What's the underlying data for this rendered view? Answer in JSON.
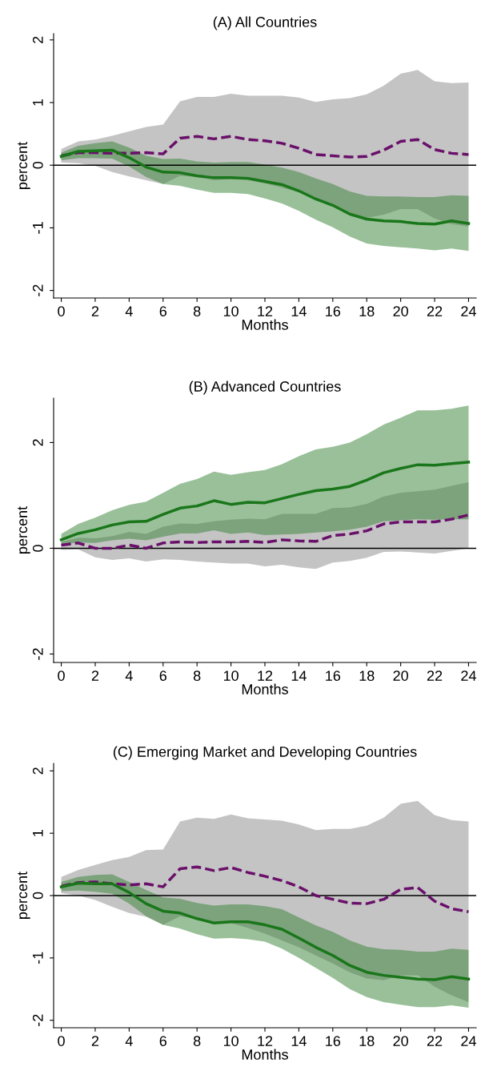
{
  "chart_data": [
    {
      "type": "line",
      "title": "(A) All Countries",
      "xlabel": "Months",
      "ylabel": "percent",
      "x": [
        0,
        1,
        2,
        3,
        4,
        5,
        6,
        7,
        8,
        9,
        10,
        11,
        12,
        13,
        14,
        15,
        16,
        17,
        18,
        19,
        20,
        21,
        22,
        23,
        24
      ],
      "xlim": [
        -0.45,
        24.45
      ],
      "xticks": [
        0,
        2,
        4,
        6,
        8,
        10,
        12,
        14,
        16,
        18,
        20,
        22,
        24
      ],
      "ylim": [
        -2.12,
        2.1
      ],
      "yticks": [
        -2,
        -1,
        0,
        1,
        2
      ],
      "ref_lines": [
        {
          "axis": "y",
          "value": 0,
          "color": "#000000"
        }
      ],
      "series": [
        {
          "color": "#6a0f6a",
          "line_style": "dashed",
          "values": [
            0.15,
            0.2,
            0.2,
            0.19,
            0.19,
            0.2,
            0.18,
            0.43,
            0.46,
            0.42,
            0.46,
            0.41,
            0.39,
            0.35,
            0.27,
            0.17,
            0.15,
            0.13,
            0.14,
            0.24,
            0.38,
            0.41,
            0.25,
            0.19,
            0.17
          ],
          "upper": [
            0.26,
            0.38,
            0.41,
            0.47,
            0.54,
            0.61,
            0.65,
            1.02,
            1.09,
            1.09,
            1.14,
            1.11,
            1.11,
            1.11,
            1.08,
            1.01,
            1.05,
            1.07,
            1.13,
            1.27,
            1.46,
            1.52,
            1.34,
            1.31,
            1.32
          ],
          "lower": [
            0.04,
            0.03,
            -0.01,
            -0.11,
            -0.18,
            -0.24,
            -0.3,
            -0.17,
            -0.19,
            -0.24,
            -0.22,
            -0.24,
            -0.29,
            -0.36,
            -0.43,
            -0.54,
            -0.63,
            -0.79,
            -0.84,
            -0.79,
            -0.7,
            -0.7,
            -0.85,
            -0.94,
            -0.98
          ]
        },
        {
          "color": "#1a761a",
          "line_style": "solid",
          "values": [
            0.14,
            0.22,
            0.23,
            0.24,
            0.12,
            -0.03,
            -0.11,
            -0.12,
            -0.17,
            -0.2,
            -0.2,
            -0.21,
            -0.26,
            -0.31,
            -0.41,
            -0.54,
            -0.64,
            -0.78,
            -0.86,
            -0.89,
            -0.9,
            -0.93,
            -0.94,
            -0.89,
            -0.93
          ],
          "upper": [
            0.2,
            0.31,
            0.35,
            0.38,
            0.28,
            0.15,
            0.1,
            0.105,
            0.06,
            0.04,
            0.05,
            0.05,
            0.01,
            -0.04,
            -0.11,
            -0.21,
            -0.3,
            -0.42,
            -0.49,
            -0.5,
            -0.5,
            -0.51,
            -0.51,
            -0.48,
            -0.49
          ],
          "lower": [
            0.08,
            0.11,
            0.11,
            0.105,
            -0.02,
            -0.19,
            -0.3,
            -0.33,
            -0.39,
            -0.44,
            -0.44,
            -0.46,
            -0.53,
            -0.61,
            -0.73,
            -0.87,
            -0.99,
            -1.14,
            -1.25,
            -1.29,
            -1.31,
            -1.33,
            -1.36,
            -1.33,
            -1.37
          ]
        }
      ]
    },
    {
      "type": "line",
      "title": "(B) Advanced Countries",
      "xlabel": "Months",
      "ylabel": "percent",
      "x": [
        0,
        1,
        2,
        3,
        4,
        5,
        6,
        7,
        8,
        9,
        10,
        11,
        12,
        13,
        14,
        15,
        16,
        17,
        18,
        19,
        20,
        21,
        22,
        23,
        24
      ],
      "xlim": [
        -0.45,
        24.45
      ],
      "xticks": [
        0,
        2,
        4,
        6,
        8,
        10,
        12,
        14,
        16,
        18,
        20,
        22,
        24
      ],
      "ylim": [
        -2.16,
        2.84
      ],
      "yticks": [
        -2,
        0,
        2
      ],
      "ref_lines": [
        {
          "axis": "y",
          "value": 0,
          "color": "#000000"
        }
      ],
      "series": [
        {
          "color": "#6a0f6a",
          "line_style": "dashed",
          "values": [
            0.06,
            0.1,
            0.0,
            0.0,
            0.06,
            0.0,
            0.1,
            0.12,
            0.11,
            0.12,
            0.12,
            0.13,
            0.11,
            0.16,
            0.14,
            0.13,
            0.24,
            0.27,
            0.33,
            0.46,
            0.5,
            0.5,
            0.5,
            0.55,
            0.63
          ],
          "upper": [
            0.12,
            0.2,
            0.19,
            0.23,
            0.31,
            0.27,
            0.41,
            0.47,
            0.46,
            0.51,
            0.54,
            0.56,
            0.55,
            0.65,
            0.65,
            0.65,
            0.76,
            0.77,
            0.84,
            0.98,
            1.05,
            1.08,
            1.11,
            1.18,
            1.25
          ],
          "lower": [
            -0.03,
            -0.02,
            -0.17,
            -0.22,
            -0.19,
            -0.25,
            -0.21,
            -0.22,
            -0.25,
            -0.27,
            -0.29,
            -0.29,
            -0.34,
            -0.31,
            -0.36,
            -0.39,
            -0.27,
            -0.24,
            -0.18,
            -0.07,
            -0.06,
            -0.08,
            -0.1,
            -0.05,
            0.0
          ]
        },
        {
          "color": "#1a761a",
          "line_style": "solid",
          "values": [
            0.16,
            0.28,
            0.35,
            0.44,
            0.5,
            0.51,
            0.64,
            0.76,
            0.8,
            0.9,
            0.83,
            0.87,
            0.86,
            0.94,
            1.02,
            1.09,
            1.12,
            1.17,
            1.29,
            1.43,
            1.51,
            1.58,
            1.57,
            1.6,
            1.63
          ],
          "upper": [
            0.27,
            0.46,
            0.58,
            0.72,
            0.82,
            0.88,
            1.05,
            1.22,
            1.31,
            1.45,
            1.39,
            1.44,
            1.48,
            1.59,
            1.74,
            1.87,
            1.92,
            2.0,
            2.16,
            2.34,
            2.47,
            2.61,
            2.61,
            2.64,
            2.7
          ],
          "lower": [
            0.07,
            0.11,
            0.1,
            0.15,
            0.18,
            0.15,
            0.22,
            0.28,
            0.28,
            0.34,
            0.27,
            0.3,
            0.25,
            0.26,
            0.27,
            0.3,
            0.32,
            0.35,
            0.41,
            0.51,
            0.53,
            0.55,
            0.54,
            0.55,
            0.55
          ]
        }
      ]
    },
    {
      "type": "line",
      "title": "(C) Emerging Market and Developing Countries",
      "xlabel": "Months",
      "ylabel": "percent",
      "x": [
        0,
        1,
        2,
        3,
        4,
        5,
        6,
        7,
        8,
        9,
        10,
        11,
        12,
        13,
        14,
        15,
        16,
        17,
        18,
        19,
        20,
        21,
        22,
        23,
        24
      ],
      "xlim": [
        -0.45,
        24.45
      ],
      "xticks": [
        0,
        2,
        4,
        6,
        8,
        10,
        12,
        14,
        16,
        18,
        20,
        22,
        24
      ],
      "ylim": [
        -2.12,
        2.12
      ],
      "yticks": [
        -2,
        -1,
        0,
        1,
        2
      ],
      "ref_lines": [
        {
          "axis": "y",
          "value": 0,
          "color": "#000000"
        }
      ],
      "series": [
        {
          "color": "#6a0f6a",
          "line_style": "dashed",
          "values": [
            0.15,
            0.21,
            0.22,
            0.19,
            0.17,
            0.19,
            0.14,
            0.43,
            0.46,
            0.4,
            0.45,
            0.37,
            0.31,
            0.24,
            0.14,
            0.0,
            -0.06,
            -0.12,
            -0.13,
            -0.06,
            0.1,
            0.13,
            -0.09,
            -0.21,
            -0.26
          ],
          "upper": [
            0.3,
            0.41,
            0.49,
            0.57,
            0.62,
            0.73,
            0.74,
            1.19,
            1.25,
            1.23,
            1.3,
            1.24,
            1.22,
            1.2,
            1.14,
            1.05,
            1.07,
            1.07,
            1.12,
            1.25,
            1.47,
            1.52,
            1.29,
            1.21,
            1.19
          ],
          "lower": [
            0.04,
            0.0,
            -0.07,
            -0.18,
            -0.28,
            -0.34,
            -0.47,
            -0.33,
            -0.38,
            -0.43,
            -0.44,
            -0.52,
            -0.61,
            -0.72,
            -0.83,
            -0.96,
            -1.09,
            -1.23,
            -1.33,
            -1.36,
            -1.28,
            -1.28,
            -1.46,
            -1.6,
            -1.71
          ]
        },
        {
          "color": "#1a761a",
          "line_style": "solid",
          "values": [
            0.14,
            0.2,
            0.19,
            0.19,
            0.05,
            -0.13,
            -0.25,
            -0.28,
            -0.37,
            -0.44,
            -0.42,
            -0.42,
            -0.47,
            -0.54,
            -0.68,
            -0.83,
            -0.96,
            -1.12,
            -1.23,
            -1.28,
            -1.31,
            -1.34,
            -1.35,
            -1.3,
            -1.34
          ],
          "upper": [
            0.22,
            0.3,
            0.33,
            0.34,
            0.22,
            0.09,
            -0.03,
            -0.05,
            -0.12,
            -0.16,
            -0.14,
            -0.14,
            -0.17,
            -0.22,
            -0.35,
            -0.48,
            -0.58,
            -0.72,
            -0.82,
            -0.86,
            -0.87,
            -0.9,
            -0.9,
            -0.85,
            -0.87
          ],
          "lower": [
            0.07,
            0.08,
            0.06,
            0.03,
            -0.13,
            -0.33,
            -0.47,
            -0.53,
            -0.62,
            -0.69,
            -0.68,
            -0.7,
            -0.74,
            -0.85,
            -1.0,
            -1.16,
            -1.32,
            -1.5,
            -1.63,
            -1.71,
            -1.75,
            -1.79,
            -1.79,
            -1.76,
            -1.8
          ]
        }
      ]
    }
  ]
}
